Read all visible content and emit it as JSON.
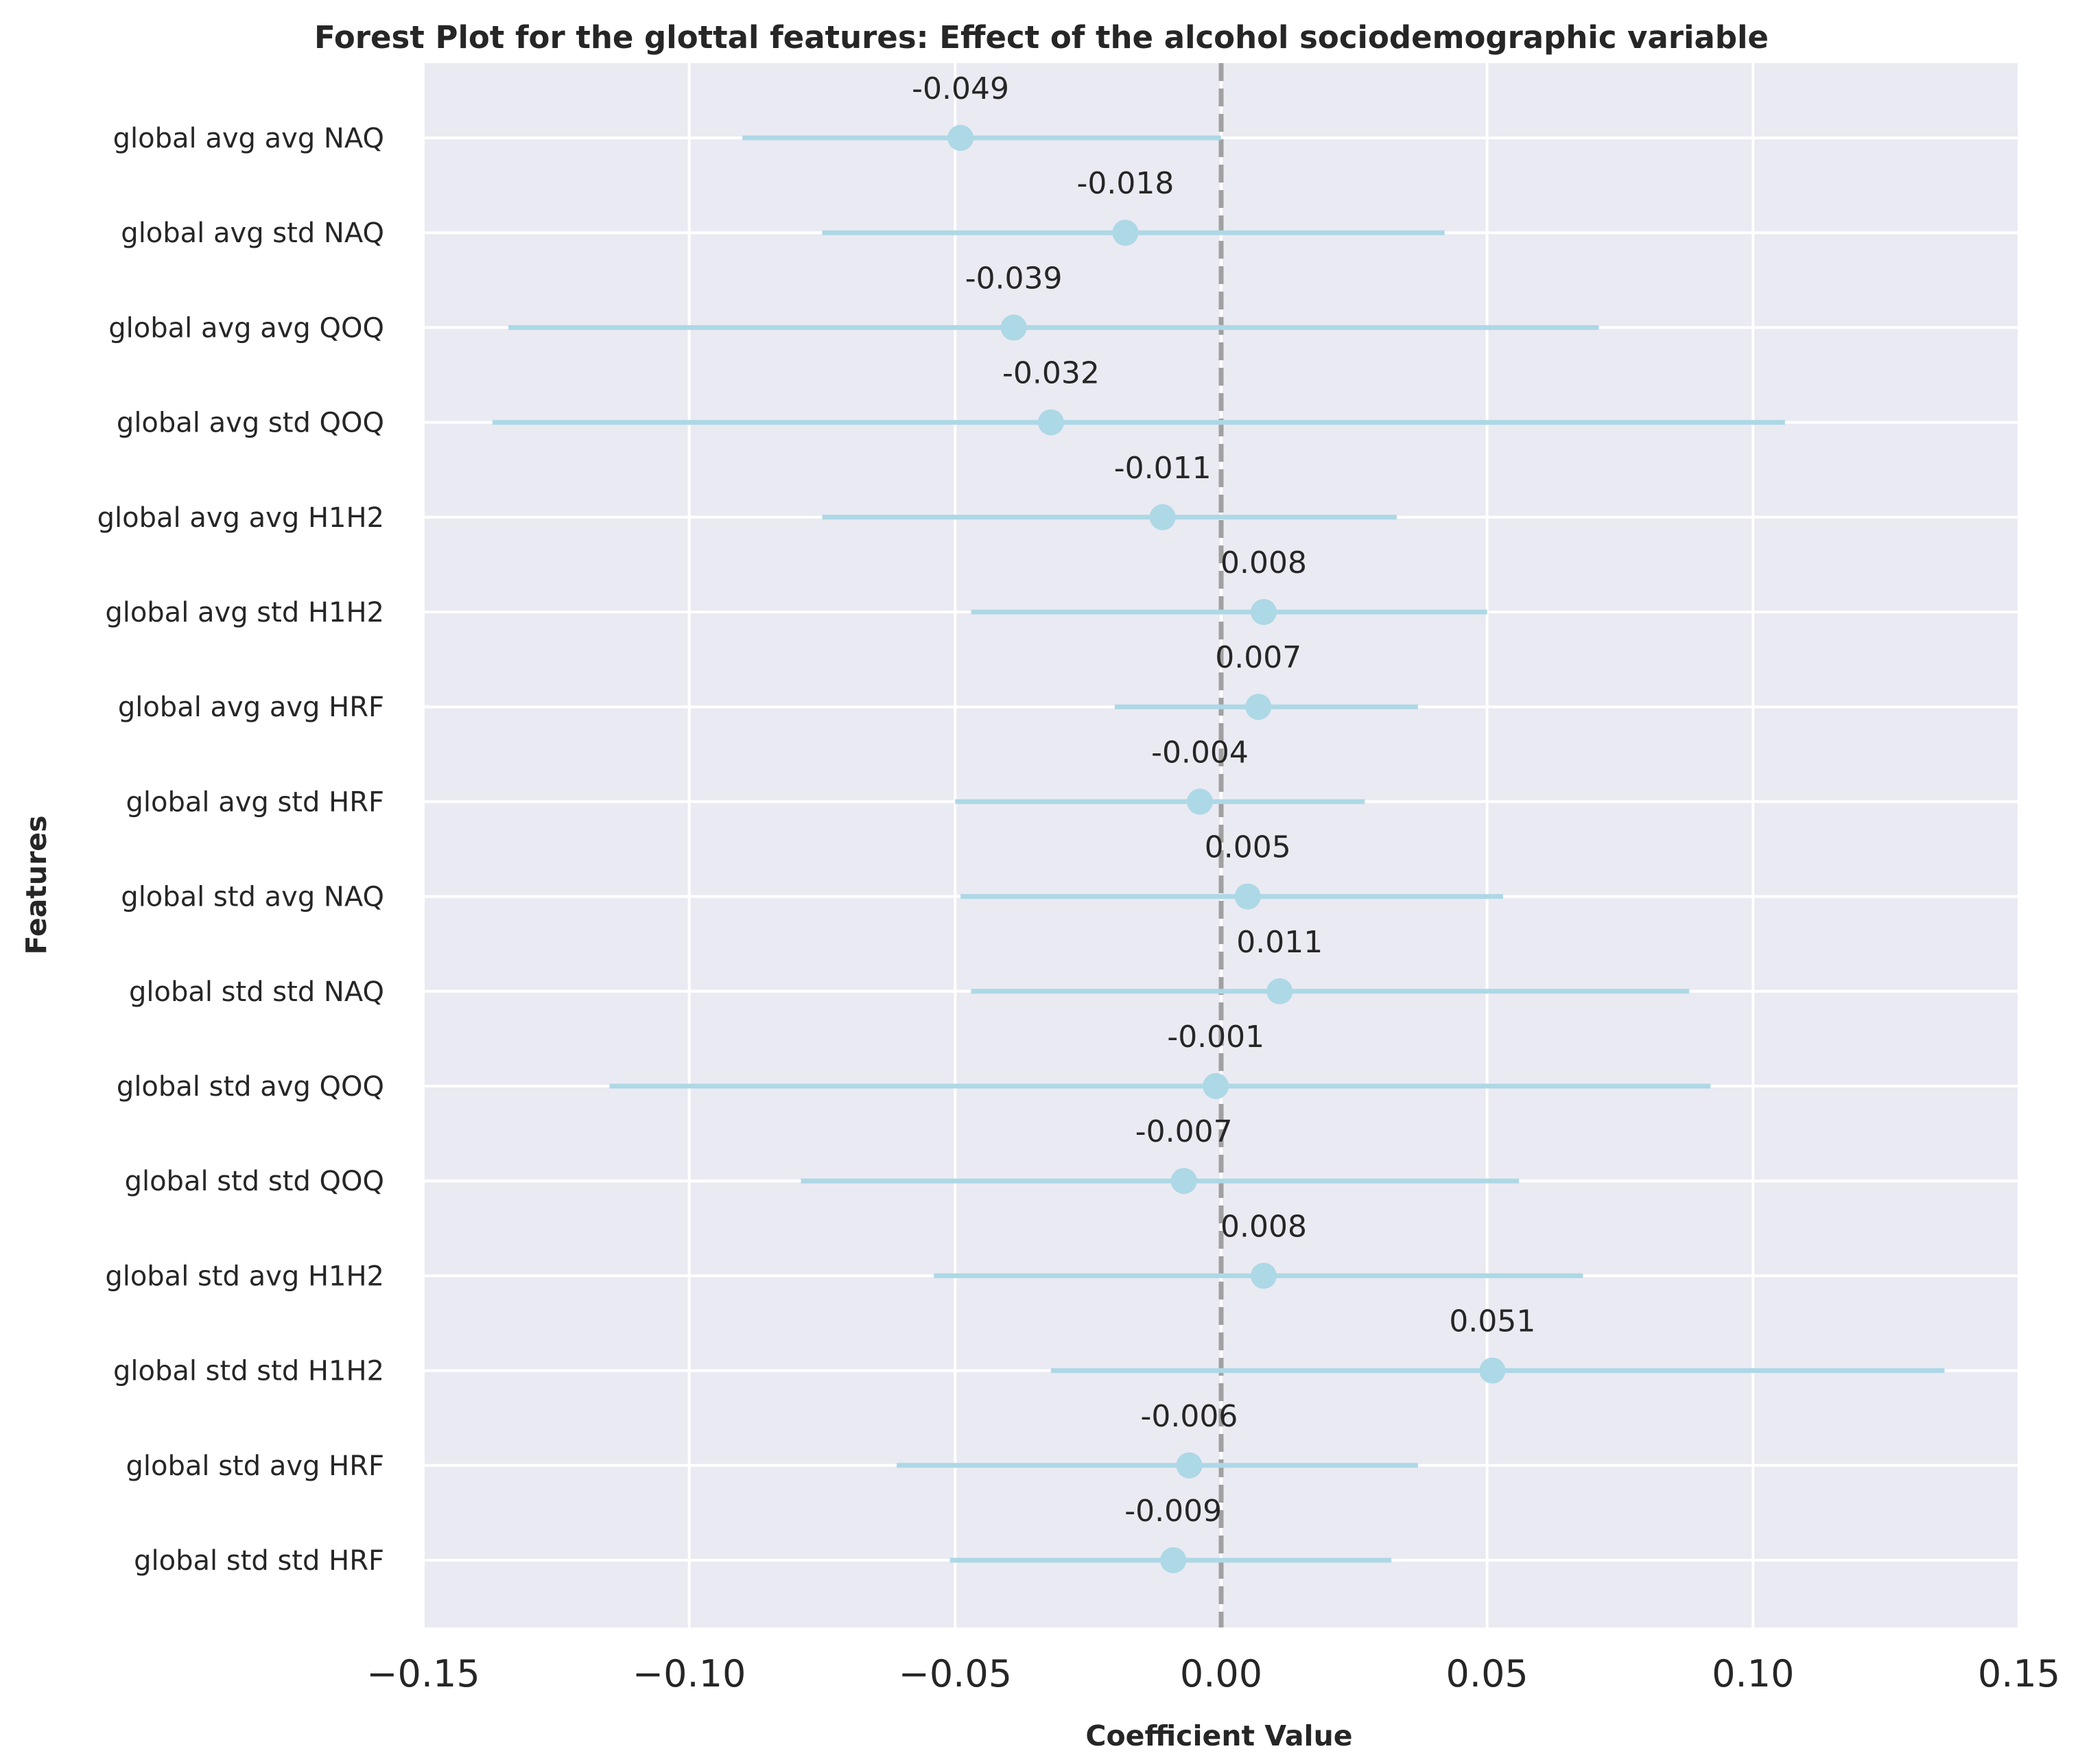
{
  "chart_data": {
    "type": "forest",
    "title": "Forest Plot for the glottal features: Effect of the alcohol sociodemographic variable",
    "xlabel": "Coefficient Value",
    "ylabel": "Features",
    "xlim": [
      -0.15,
      0.15
    ],
    "xticks": [
      -0.15,
      -0.1,
      -0.05,
      0.0,
      0.05,
      0.1,
      0.15
    ],
    "xtick_labels": [
      "−0.15",
      "−0.10",
      "−0.05",
      "0.00",
      "0.05",
      "0.10",
      "0.15"
    ],
    "reference_line": 0,
    "grid": true,
    "colors": {
      "background": "#eaeaf2",
      "grid": "#ffffff",
      "marker": "#add8e6",
      "reference_line": "#a0a0a0",
      "text": "#262626"
    },
    "rows": [
      {
        "feature": "global avg avg NAQ",
        "coef": -0.049,
        "label": "-0.049",
        "ci": [
          -0.09,
          0.0
        ]
      },
      {
        "feature": "global avg std NAQ",
        "coef": -0.018,
        "label": "-0.018",
        "ci": [
          -0.075,
          0.042
        ]
      },
      {
        "feature": "global avg avg QOQ",
        "coef": -0.039,
        "label": "-0.039",
        "ci": [
          -0.134,
          0.071
        ]
      },
      {
        "feature": "global avg std QOQ",
        "coef": -0.032,
        "label": "-0.032",
        "ci": [
          -0.137,
          0.106
        ]
      },
      {
        "feature": "global avg avg H1H2",
        "coef": -0.011,
        "label": "-0.011",
        "ci": [
          -0.075,
          0.033
        ]
      },
      {
        "feature": "global avg std H1H2",
        "coef": 0.008,
        "label": "0.008",
        "ci": [
          -0.047,
          0.05
        ]
      },
      {
        "feature": "global avg avg HRF",
        "coef": 0.007,
        "label": "0.007",
        "ci": [
          -0.02,
          0.037
        ]
      },
      {
        "feature": "global avg std HRF",
        "coef": -0.004,
        "label": "-0.004",
        "ci": [
          -0.05,
          0.027
        ]
      },
      {
        "feature": "global std avg NAQ",
        "coef": 0.005,
        "label": "0.005",
        "ci": [
          -0.049,
          0.053
        ]
      },
      {
        "feature": "global std std NAQ",
        "coef": 0.011,
        "label": "0.011",
        "ci": [
          -0.047,
          0.088
        ]
      },
      {
        "feature": "global std avg QOQ",
        "coef": -0.001,
        "label": "-0.001",
        "ci": [
          -0.115,
          0.092
        ]
      },
      {
        "feature": "global std std QOQ",
        "coef": -0.007,
        "label": "-0.007",
        "ci": [
          -0.079,
          0.056
        ]
      },
      {
        "feature": "global std avg H1H2",
        "coef": 0.008,
        "label": "0.008",
        "ci": [
          -0.054,
          0.068
        ]
      },
      {
        "feature": "global std std H1H2",
        "coef": 0.051,
        "label": "0.051",
        "ci": [
          -0.032,
          0.136
        ]
      },
      {
        "feature": "global std avg HRF",
        "coef": -0.006,
        "label": "-0.006",
        "ci": [
          -0.061,
          0.037
        ]
      },
      {
        "feature": "global std std HRF",
        "coef": -0.009,
        "label": "-0.009",
        "ci": [
          -0.051,
          0.032
        ]
      }
    ]
  }
}
